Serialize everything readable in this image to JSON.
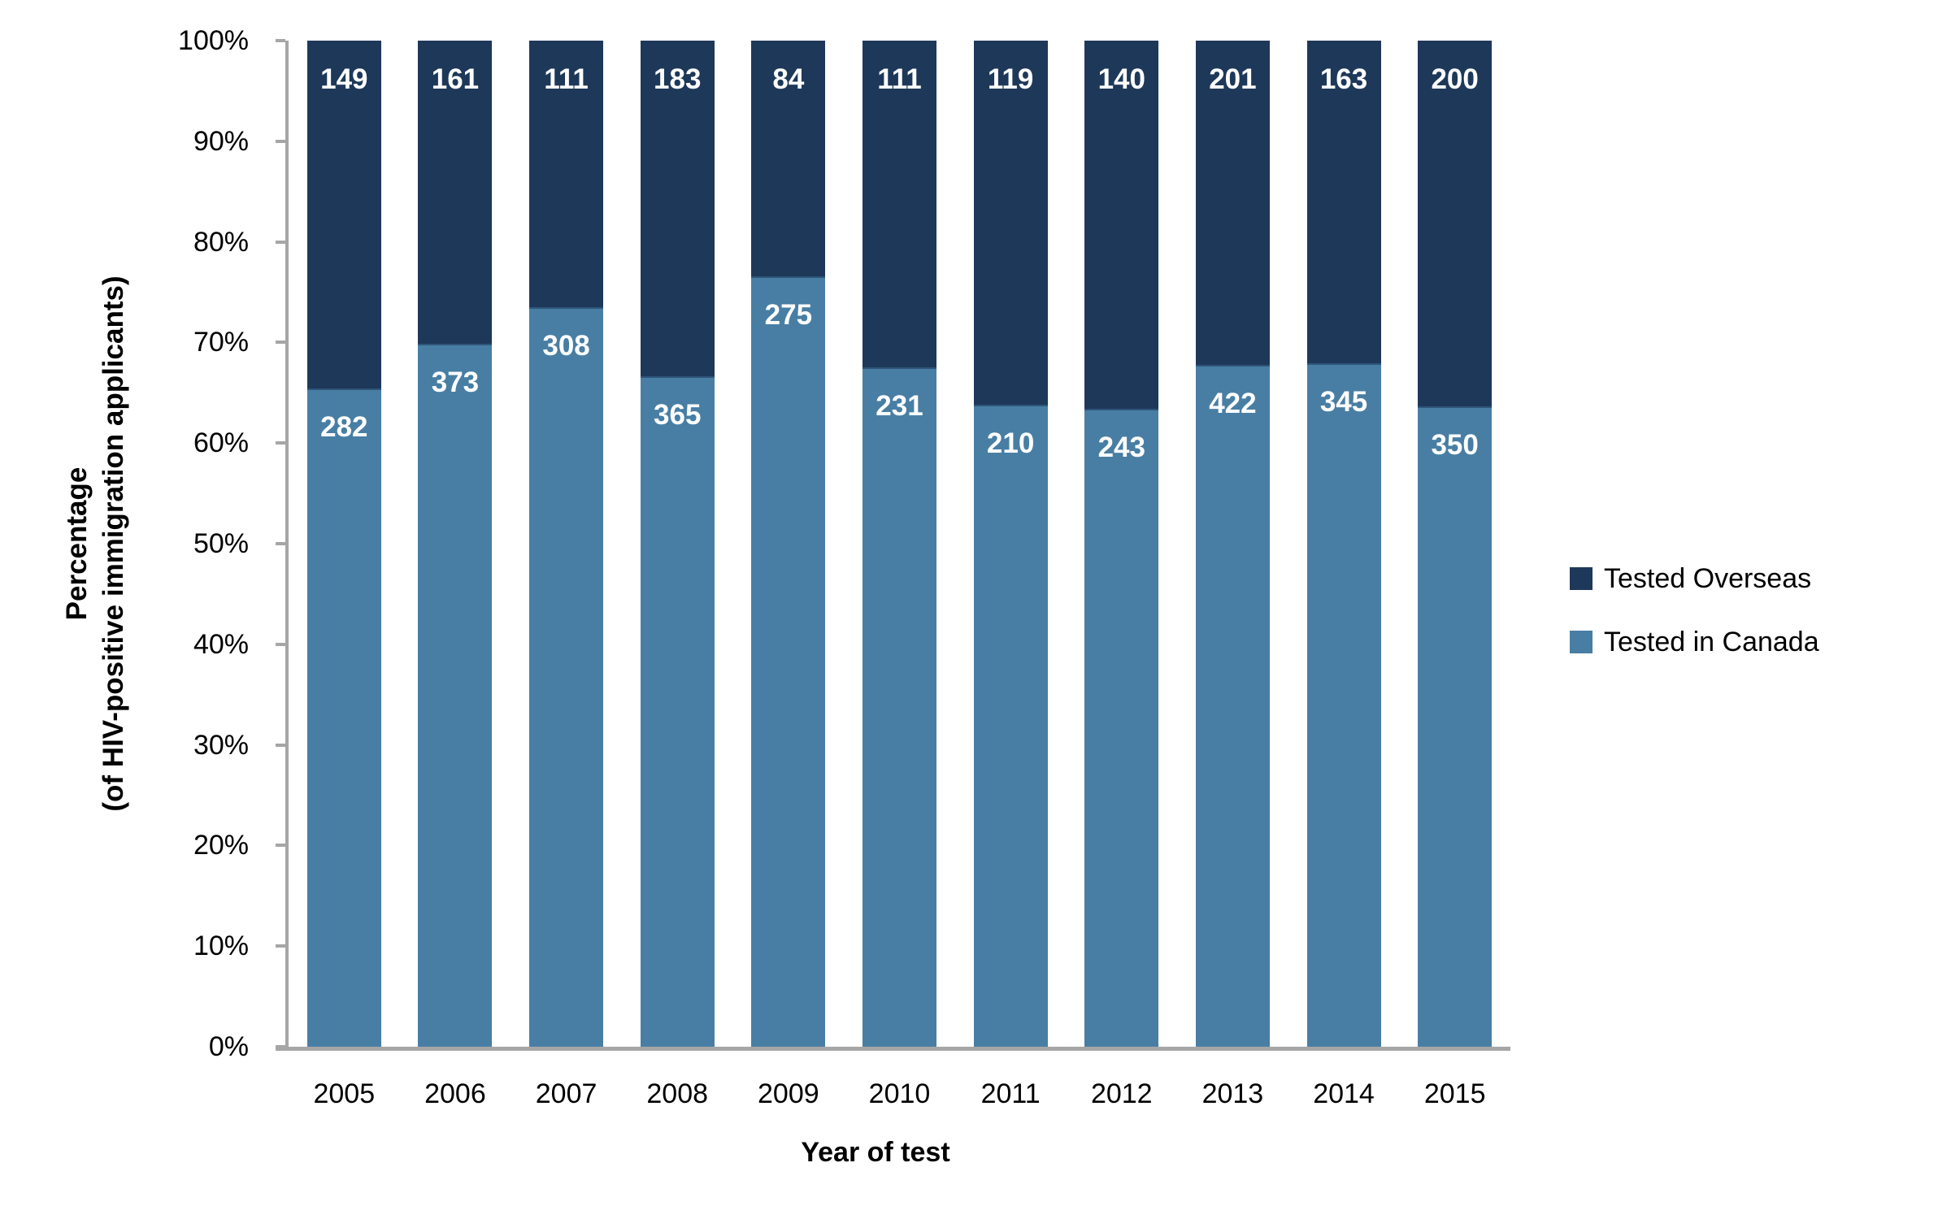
{
  "chart_data": {
    "type": "bar",
    "variant": "stacked-100-percent",
    "title": "",
    "xlabel": "Year of test",
    "ylabel_line1": "Percentage",
    "ylabel_line2": "(of HIV-positive immigration applicants)",
    "categories": [
      "2005",
      "2006",
      "2007",
      "2008",
      "2009",
      "2010",
      "2011",
      "2012",
      "2013",
      "2014",
      "2015"
    ],
    "series": [
      {
        "name": "Tested in Canada",
        "color": "#487EA4",
        "stack_position": "bottom",
        "values": [
          282,
          373,
          308,
          365,
          275,
          231,
          210,
          243,
          422,
          345,
          350
        ]
      },
      {
        "name": "Tested Overseas",
        "color": "#1E3859",
        "stack_position": "top",
        "values": [
          149,
          161,
          111,
          183,
          84,
          111,
          119,
          140,
          201,
          163,
          200
        ]
      }
    ],
    "y_ticks": [
      "0%",
      "10%",
      "20%",
      "30%",
      "40%",
      "50%",
      "60%",
      "70%",
      "80%",
      "90%",
      "100%"
    ],
    "ylim": [
      0,
      100
    ],
    "grid": false,
    "legend_position": "right",
    "bar_label_color": "#FFFFFF",
    "axis_color": "#A6A6A6",
    "segment_divider_color": "#2F5579"
  },
  "y_axis_title": {
    "line1": "Percentage",
    "line2": "(of HIV-positive immigration applicants)"
  },
  "x_axis_title": "Year of test",
  "legend": {
    "items": [
      {
        "label": "Tested Overseas",
        "color": "#1E3859"
      },
      {
        "label": "Tested in Canada",
        "color": "#487EA4"
      }
    ]
  }
}
